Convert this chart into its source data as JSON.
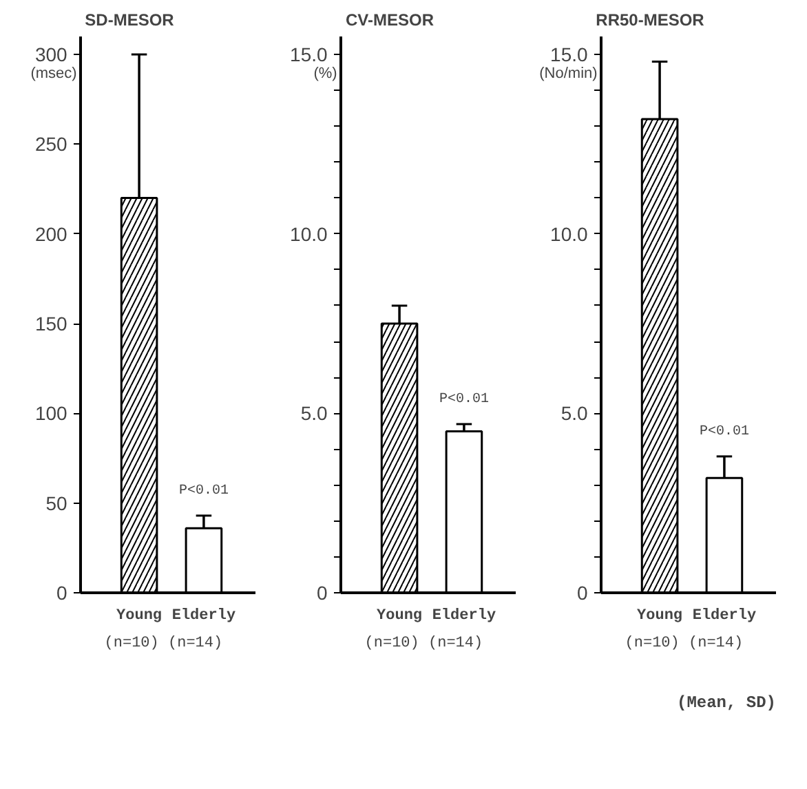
{
  "chart_data": [
    {
      "type": "bar",
      "title": "SD-MESOR",
      "ylabel": "(msec)",
      "xlabel": "(n=10)  (n=14)",
      "categories": [
        "Young",
        "Elderly"
      ],
      "values": [
        220,
        36
      ],
      "errors": [
        80,
        7
      ],
      "colors": [
        "#ffffff",
        "#ffffff"
      ],
      "ylim": [
        0,
        310
      ],
      "yticks": [
        0,
        50,
        100,
        150,
        200,
        250,
        300
      ],
      "grid": false,
      "annotations": [
        "P<0.01"
      ]
    },
    {
      "type": "bar",
      "title": "CV-MESOR",
      "ylabel": "(%)",
      "xlabel": "(n=10)  (n=14)",
      "categories": [
        "Young",
        "Elderly"
      ],
      "values": [
        7.5,
        4.5
      ],
      "errors": [
        0.5,
        0.2
      ],
      "colors": [
        "#ffffff",
        "#ffffff"
      ],
      "ylim": [
        0,
        15.5
      ],
      "yticks": [
        0,
        {
          "value": 1,
          "label": null
        },
        {
          "value": 2,
          "label": null
        },
        {
          "value": 3,
          "label": null
        },
        {
          "value": 4,
          "label": null
        },
        {
          "value": 5,
          "label": "5.0"
        },
        {
          "value": 6,
          "label": null
        },
        {
          "value": 7,
          "label": null
        },
        {
          "value": 8,
          "label": null
        },
        {
          "value": 9,
          "label": null
        },
        {
          "value": 10,
          "label": "10.0"
        },
        {
          "value": 11,
          "label": null
        },
        {
          "value": 12,
          "label": null
        },
        {
          "value": 13,
          "label": null
        },
        {
          "value": 14,
          "label": null
        },
        {
          "value": 15,
          "label": "15.0"
        }
      ],
      "grid": false,
      "annotations": [
        "P<0.01"
      ]
    },
    {
      "type": "bar",
      "title": "RR50-MESOR",
      "ylabel": "(No/min)",
      "xlabel": "(n=10)  (n=14)",
      "categories": [
        "Young",
        "Elderly"
      ],
      "values": [
        13.2,
        3.2
      ],
      "errors": [
        1.6,
        0.6
      ],
      "colors": [
        "#ffffff",
        "#ffffff"
      ],
      "ylim": [
        0,
        15.5
      ],
      "yticks": [
        0,
        {
          "value": 1,
          "label": null
        },
        {
          "value": 2,
          "label": null
        },
        {
          "value": 3,
          "label": null
        },
        {
          "value": 4,
          "label": null
        },
        {
          "value": 5,
          "label": "5.0"
        },
        {
          "value": 6,
          "label": null
        },
        {
          "value": 7,
          "label": null
        },
        {
          "value": 8,
          "label": null
        },
        {
          "value": 9,
          "label": null
        },
        {
          "value": 10,
          "label": "10.0"
        },
        {
          "value": 11,
          "label": null
        },
        {
          "value": 12,
          "label": null
        },
        {
          "value": 13,
          "label": null
        },
        {
          "value": 14,
          "label": null
        },
        {
          "value": 15,
          "label": "15.0"
        }
      ],
      "grid": false,
      "annotations": [
        "P<0.01",
        "(Mean, SD)"
      ]
    }
  ]
}
